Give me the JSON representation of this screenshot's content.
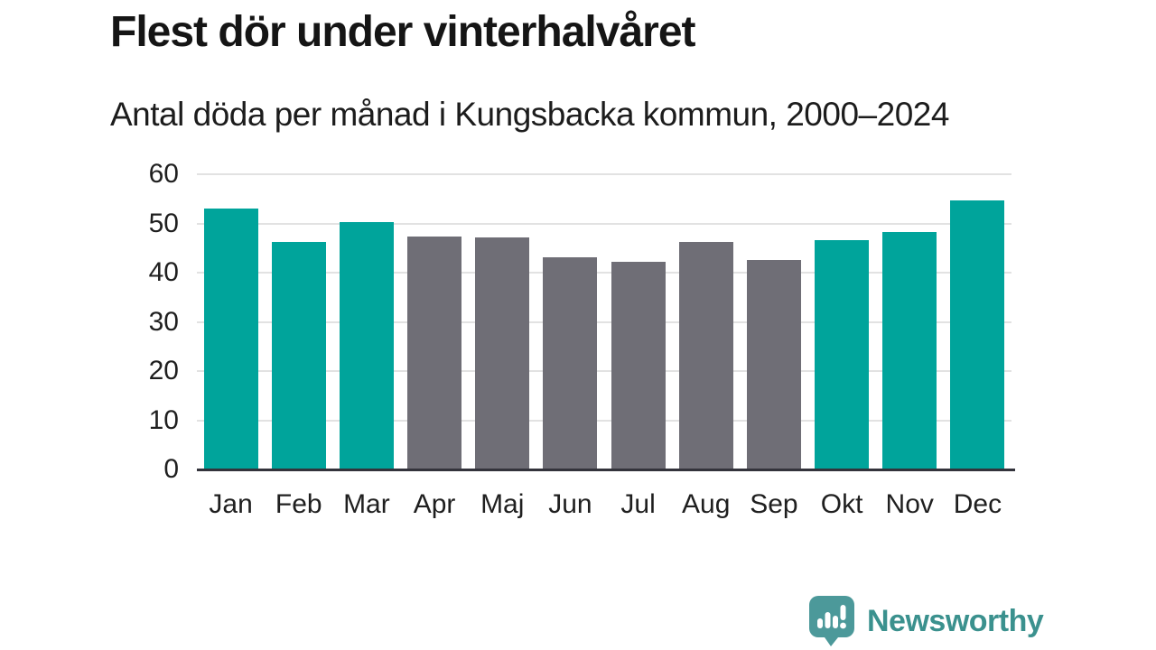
{
  "header": {
    "title": "Flest dör under vinterhalvåret",
    "subtitle": "Antal döda per månad i Kungsbacka kommun, 2000–2024"
  },
  "chart_data": {
    "type": "bar",
    "categories": [
      "Jan",
      "Feb",
      "Mar",
      "Apr",
      "Maj",
      "Jun",
      "Jul",
      "Aug",
      "Sep",
      "Okt",
      "Nov",
      "Dec"
    ],
    "values": [
      53.1,
      46.3,
      50.2,
      47.4,
      47.1,
      43.1,
      42.2,
      46.3,
      42.5,
      46.6,
      48.2,
      54.6
    ],
    "colors": [
      "#00a49b",
      "#00a49b",
      "#00a49b",
      "#6f6e76",
      "#6f6e76",
      "#6f6e76",
      "#6f6e76",
      "#6f6e76",
      "#6f6e76",
      "#00a49b",
      "#00a49b",
      "#00a49b"
    ],
    "title": "Flest dör under vinterhalvåret",
    "subtitle": "Antal döda per månad i Kungsbacka kommun, 2000–2024",
    "xlabel": "",
    "ylabel": "",
    "ylim": [
      0,
      60
    ],
    "yticks": [
      0,
      10,
      20,
      30,
      40,
      50,
      60
    ],
    "grid": true,
    "legend_position": "none",
    "highlight_color": "#00a49b",
    "muted_color": "#6f6e76",
    "gridline_color": "#e2e2e2",
    "axis_color": "#33333b"
  },
  "footer": {
    "brand": "Newsworthy",
    "brand_color": "#3b918e",
    "logo_icon": "newsworthy-speech-bubble-bar-chart-icon",
    "logo_bubble_color": "#4c999a"
  }
}
